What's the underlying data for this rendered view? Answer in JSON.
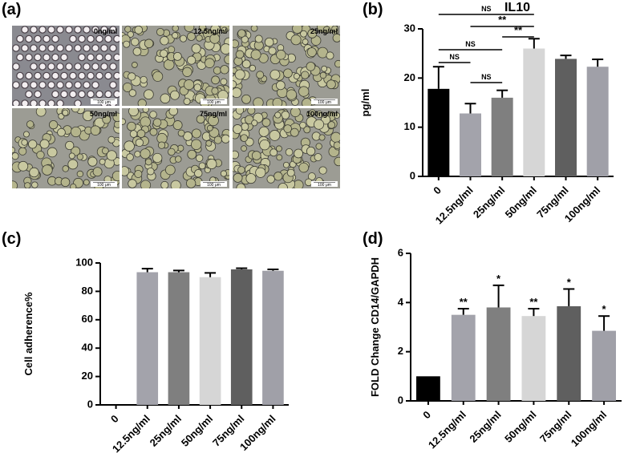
{
  "figure_a": {
    "panel": "(a)",
    "tiles": [
      {
        "label": "0ng/ml",
        "scale": "100 μm"
      },
      {
        "label": "12.5ng/ml",
        "scale": "100 μm"
      },
      {
        "label": "25ng/ml",
        "scale": "100 μm"
      },
      {
        "label": "50ng/ml",
        "scale": "100 μm"
      },
      {
        "label": "75ng/ml",
        "scale": "100 μm"
      },
      {
        "label": "100ng/ml",
        "scale": "100 μm"
      }
    ]
  },
  "chart_data": [
    {
      "type": "bar",
      "panel": "(b)",
      "title": "IL10",
      "ylabel": "pg/ml",
      "categories": [
        "0",
        "12.5ng/ml",
        "25ng/ml",
        "50ng/ml",
        "75ng/ml",
        "100ng/ml"
      ],
      "values": [
        17.8,
        12.8,
        16,
        26,
        23.9,
        22.3
      ],
      "errors": [
        4.5,
        2,
        1.5,
        2,
        0.7,
        1.5
      ],
      "colors": [
        "#000000",
        "#a3a3ab",
        "#7f7f7f",
        "#d6d6d6",
        "#5f5f5f",
        "#a0a0a8"
      ],
      "ylim": [
        0,
        30
      ],
      "yticks": [
        0,
        10,
        20,
        30
      ],
      "brackets": [
        {
          "text": "NS",
          "from": "0",
          "to": "50ng/ml"
        },
        {
          "text": "**",
          "from": "12.5ng/ml",
          "to": "50ng/ml"
        },
        {
          "text": "**",
          "from": "25ng/ml",
          "to": "50ng/ml"
        },
        {
          "text": "NS",
          "from": "0",
          "to": "25ng/ml"
        },
        {
          "text": "NS",
          "from": "0",
          "to": "12.5ng/ml"
        },
        {
          "text": "NS",
          "from": "12.5ng/ml",
          "to": "25ng/ml"
        }
      ]
    },
    {
      "type": "bar",
      "panel": "(c)",
      "ylabel": "Cell adherence%",
      "categories": [
        "0",
        "12.5ng/ml",
        "25ng/ml",
        "50ng/ml",
        "75ng/ml",
        "100ng/ml"
      ],
      "values": [
        0,
        93.5,
        93.5,
        90,
        95.5,
        94.5
      ],
      "errors": [
        0,
        2.5,
        1.2,
        3,
        0.8,
        1
      ],
      "colors": [
        "#000000",
        "#a3a3ab",
        "#7f7f7f",
        "#d6d6d6",
        "#5f5f5f",
        "#a0a0a8"
      ],
      "ylim": [
        0,
        100
      ],
      "yticks": [
        0,
        20,
        40,
        60,
        80,
        100
      ]
    },
    {
      "type": "bar",
      "panel": "(d)",
      "ylabel": "FOLD Change CD14/GAPDH",
      "categories": [
        "0",
        "12.5ng/ml",
        "25ng/ml",
        "50ng/ml",
        "75ng/ml",
        "100ng/ml"
      ],
      "values": [
        1,
        3.5,
        3.8,
        3.45,
        3.85,
        2.85
      ],
      "errors": [
        0,
        0.25,
        0.9,
        0.3,
        0.7,
        0.6
      ],
      "significance": [
        null,
        "**",
        "*",
        "**",
        "*",
        "*"
      ],
      "colors": [
        "#000000",
        "#a3a3ab",
        "#7f7f7f",
        "#d6d6d6",
        "#5f5f5f",
        "#a0a0a8"
      ],
      "ylim": [
        0,
        6
      ],
      "yticks": [
        0,
        2,
        4,
        6
      ]
    }
  ]
}
